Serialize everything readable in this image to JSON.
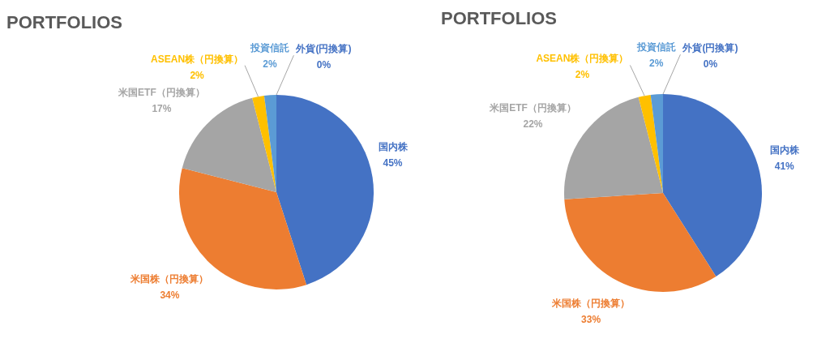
{
  "chart_data": [
    {
      "type": "pie",
      "title": "PORTFOLIOS",
      "categories": [
        "国内株",
        "米国株（円換算）",
        "米国ETF（円換算）",
        "ASEAN株（円換算）",
        "投資信託",
        "外貨(円換算)"
      ],
      "values": [
        45,
        34,
        17,
        2,
        2,
        0
      ],
      "colors": [
        "#4472c4",
        "#ed7d31",
        "#a5a5a5",
        "#ffc000",
        "#5b9bd5",
        "#4472c4"
      ],
      "value_labels": [
        "45%",
        "34%",
        "17%",
        "2%",
        "2%",
        "0%"
      ]
    },
    {
      "type": "pie",
      "title": "PORTFOLIOS",
      "categories": [
        "国内株",
        "米国株（円換算）",
        "米国ETF（円換算）",
        "ASEAN株（円換算）",
        "投資信託",
        "外貨(円換算)"
      ],
      "values": [
        41,
        33,
        22,
        2,
        2,
        0
      ],
      "colors": [
        "#4472c4",
        "#ed7d31",
        "#a5a5a5",
        "#ffc000",
        "#5b9bd5",
        "#4472c4"
      ],
      "value_labels": [
        "41%",
        "33%",
        "22%",
        "2%",
        "2%",
        "0%"
      ]
    }
  ]
}
